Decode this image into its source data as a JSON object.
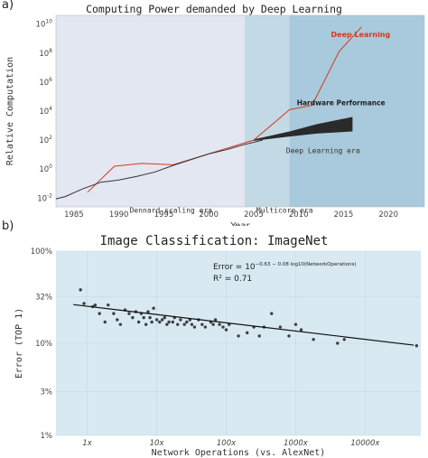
{
  "panel_a_label": "a)",
  "panel_b_label": "b)",
  "chart_data": [
    {
      "type": "line",
      "title": "Computing Power demanded by Deep Learning",
      "xlabel": "Year",
      "ylabel": "Relative Computation",
      "xlim": [
        1983,
        2024
      ],
      "ylim_log10": [
        -2.6,
        10.6
      ],
      "yscale": "log",
      "xticks": [
        1985,
        1990,
        1995,
        2000,
        2005,
        2010,
        2015,
        2020
      ],
      "yticks": [
        {
          "exp": -2,
          "label": "10^-2"
        },
        {
          "exp": 0,
          "label": "10^0"
        },
        {
          "exp": 2,
          "label": "10^2"
        },
        {
          "exp": 4,
          "label": "10^4"
        },
        {
          "exp": 6,
          "label": "10^6"
        },
        {
          "exp": 8,
          "label": "10^8"
        },
        {
          "exp": 10,
          "label": "10^10"
        }
      ],
      "eras": [
        {
          "label": "Dennard-scaling era",
          "start": 1983,
          "end": 2004,
          "color": "#e3e7f1"
        },
        {
          "label": "Multicore era",
          "start": 2004,
          "end": 2024,
          "color": "#c3d9e6"
        },
        {
          "label": "Deep Learning era",
          "start": 2009,
          "end": 2024,
          "color": "#a9c9dc"
        }
      ],
      "series": [
        {
          "name": "Deep Learning",
          "color": "#d03a1e",
          "x": [
            1986.5,
            1989.5,
            1992.5,
            1996,
            2005,
            2009,
            2011.5,
            2014.5,
            2017
          ],
          "y_log10": [
            -1.6,
            0.2,
            0.4,
            0.3,
            2.0,
            4.1,
            4.4,
            8.1,
            9.8
          ]
        },
        {
          "name": "",
          "color": "#333333",
          "x": [
            1983,
            1984,
            1986,
            1988,
            1990,
            1992,
            1994,
            1996,
            1998,
            2000,
            2002,
            2004,
            2006
          ],
          "y_log10": [
            -2.05,
            -1.9,
            -1.35,
            -0.9,
            -0.75,
            -0.5,
            -0.2,
            0.25,
            0.65,
            1.05,
            1.35,
            1.7,
            2.0
          ]
        }
      ],
      "hardware_band": {
        "name": "Hardware Performance",
        "x": [
          2005,
          2009,
          2012,
          2016
        ],
        "upper_log10": [
          2.05,
          2.6,
          3.1,
          3.6
        ],
        "lower_log10": [
          1.95,
          2.25,
          2.45,
          2.6
        ],
        "color": "#2a2a2a"
      }
    },
    {
      "type": "scatter",
      "title": "Image Classification: ImageNet",
      "xlabel": "Network Operations (vs. AlexNet)",
      "ylabel": "Error (TOP 1)",
      "xscale": "log",
      "yscale": "log",
      "xlim_log10": [
        -0.45,
        4.8
      ],
      "ylim_log10": [
        0,
        2
      ],
      "xticks": [
        {
          "log10": 0,
          "label": "1x"
        },
        {
          "log10": 1,
          "label": "10x"
        },
        {
          "log10": 2,
          "label": "100x"
        },
        {
          "log10": 3,
          "label": "1000x"
        },
        {
          "log10": 4,
          "label": "10000x"
        }
      ],
      "yticks": [
        {
          "value": 1,
          "label": "1%"
        },
        {
          "value": 3,
          "label": "3%"
        },
        {
          "value": 10,
          "label": "10%"
        },
        {
          "value": 32,
          "label": "32%"
        },
        {
          "value": 100,
          "label": "100%"
        }
      ],
      "annotation": {
        "equation_prefix": "Error = 10",
        "equation_exponent": "−0.63 − 0.08 log10(NetworkOperations)",
        "r2": "R² = 0.71"
      },
      "fit": {
        "x_log10": [
          -0.2,
          4.7
        ],
        "y_log10": [
          1.42,
          0.98
        ]
      },
      "points": [
        {
          "x": 0.8,
          "y": 38
        },
        {
          "x": 0.9,
          "y": 27
        },
        {
          "x": 1.2,
          "y": 25
        },
        {
          "x": 1.3,
          "y": 26
        },
        {
          "x": 1.5,
          "y": 21
        },
        {
          "x": 1.8,
          "y": 17
        },
        {
          "x": 2.0,
          "y": 26
        },
        {
          "x": 2.4,
          "y": 21
        },
        {
          "x": 2.7,
          "y": 18
        },
        {
          "x": 3.0,
          "y": 16
        },
        {
          "x": 3.5,
          "y": 23
        },
        {
          "x": 4.0,
          "y": 21
        },
        {
          "x": 4.5,
          "y": 19
        },
        {
          "x": 5.0,
          "y": 22
        },
        {
          "x": 5.5,
          "y": 17
        },
        {
          "x": 6.0,
          "y": 21
        },
        {
          "x": 6.5,
          "y": 19
        },
        {
          "x": 7.0,
          "y": 16
        },
        {
          "x": 7.5,
          "y": 22
        },
        {
          "x": 8.0,
          "y": 19
        },
        {
          "x": 8.5,
          "y": 17
        },
        {
          "x": 9.0,
          "y": 24
        },
        {
          "x": 10,
          "y": 18
        },
        {
          "x": 11,
          "y": 17
        },
        {
          "x": 12,
          "y": 18
        },
        {
          "x": 13,
          "y": 19
        },
        {
          "x": 14,
          "y": 16
        },
        {
          "x": 15,
          "y": 17
        },
        {
          "x": 17,
          "y": 17
        },
        {
          "x": 18,
          "y": 19
        },
        {
          "x": 20,
          "y": 16
        },
        {
          "x": 22,
          "y": 18
        },
        {
          "x": 25,
          "y": 16
        },
        {
          "x": 27,
          "y": 17
        },
        {
          "x": 30,
          "y": 18
        },
        {
          "x": 32,
          "y": 16
        },
        {
          "x": 35,
          "y": 15
        },
        {
          "x": 40,
          "y": 18
        },
        {
          "x": 45,
          "y": 16
        },
        {
          "x": 50,
          "y": 15
        },
        {
          "x": 60,
          "y": 17
        },
        {
          "x": 65,
          "y": 16
        },
        {
          "x": 70,
          "y": 18
        },
        {
          "x": 80,
          "y": 16
        },
        {
          "x": 90,
          "y": 15
        },
        {
          "x": 100,
          "y": 14
        },
        {
          "x": 110,
          "y": 16
        },
        {
          "x": 150,
          "y": 12
        },
        {
          "x": 200,
          "y": 13
        },
        {
          "x": 250,
          "y": 15
        },
        {
          "x": 300,
          "y": 12
        },
        {
          "x": 350,
          "y": 15
        },
        {
          "x": 450,
          "y": 21
        },
        {
          "x": 600,
          "y": 15
        },
        {
          "x": 800,
          "y": 12
        },
        {
          "x": 1000,
          "y": 16
        },
        {
          "x": 1200,
          "y": 14
        },
        {
          "x": 1800,
          "y": 11
        },
        {
          "x": 4000,
          "y": 10
        },
        {
          "x": 5000,
          "y": 11
        },
        {
          "x": 55000,
          "y": 9.4
        }
      ]
    }
  ]
}
